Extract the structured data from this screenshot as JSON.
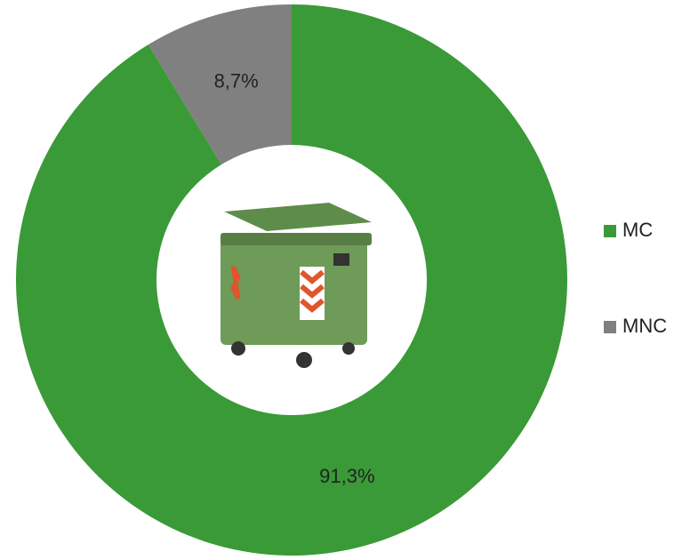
{
  "chart_data": {
    "type": "donut",
    "categories": [
      "MC",
      "MNC"
    ],
    "values": [
      91.3,
      8.7
    ],
    "value_labels": [
      "91,3%",
      "8,7%"
    ],
    "colors": [
      "#3a9a37",
      "#808080"
    ],
    "legend": "right"
  }
}
